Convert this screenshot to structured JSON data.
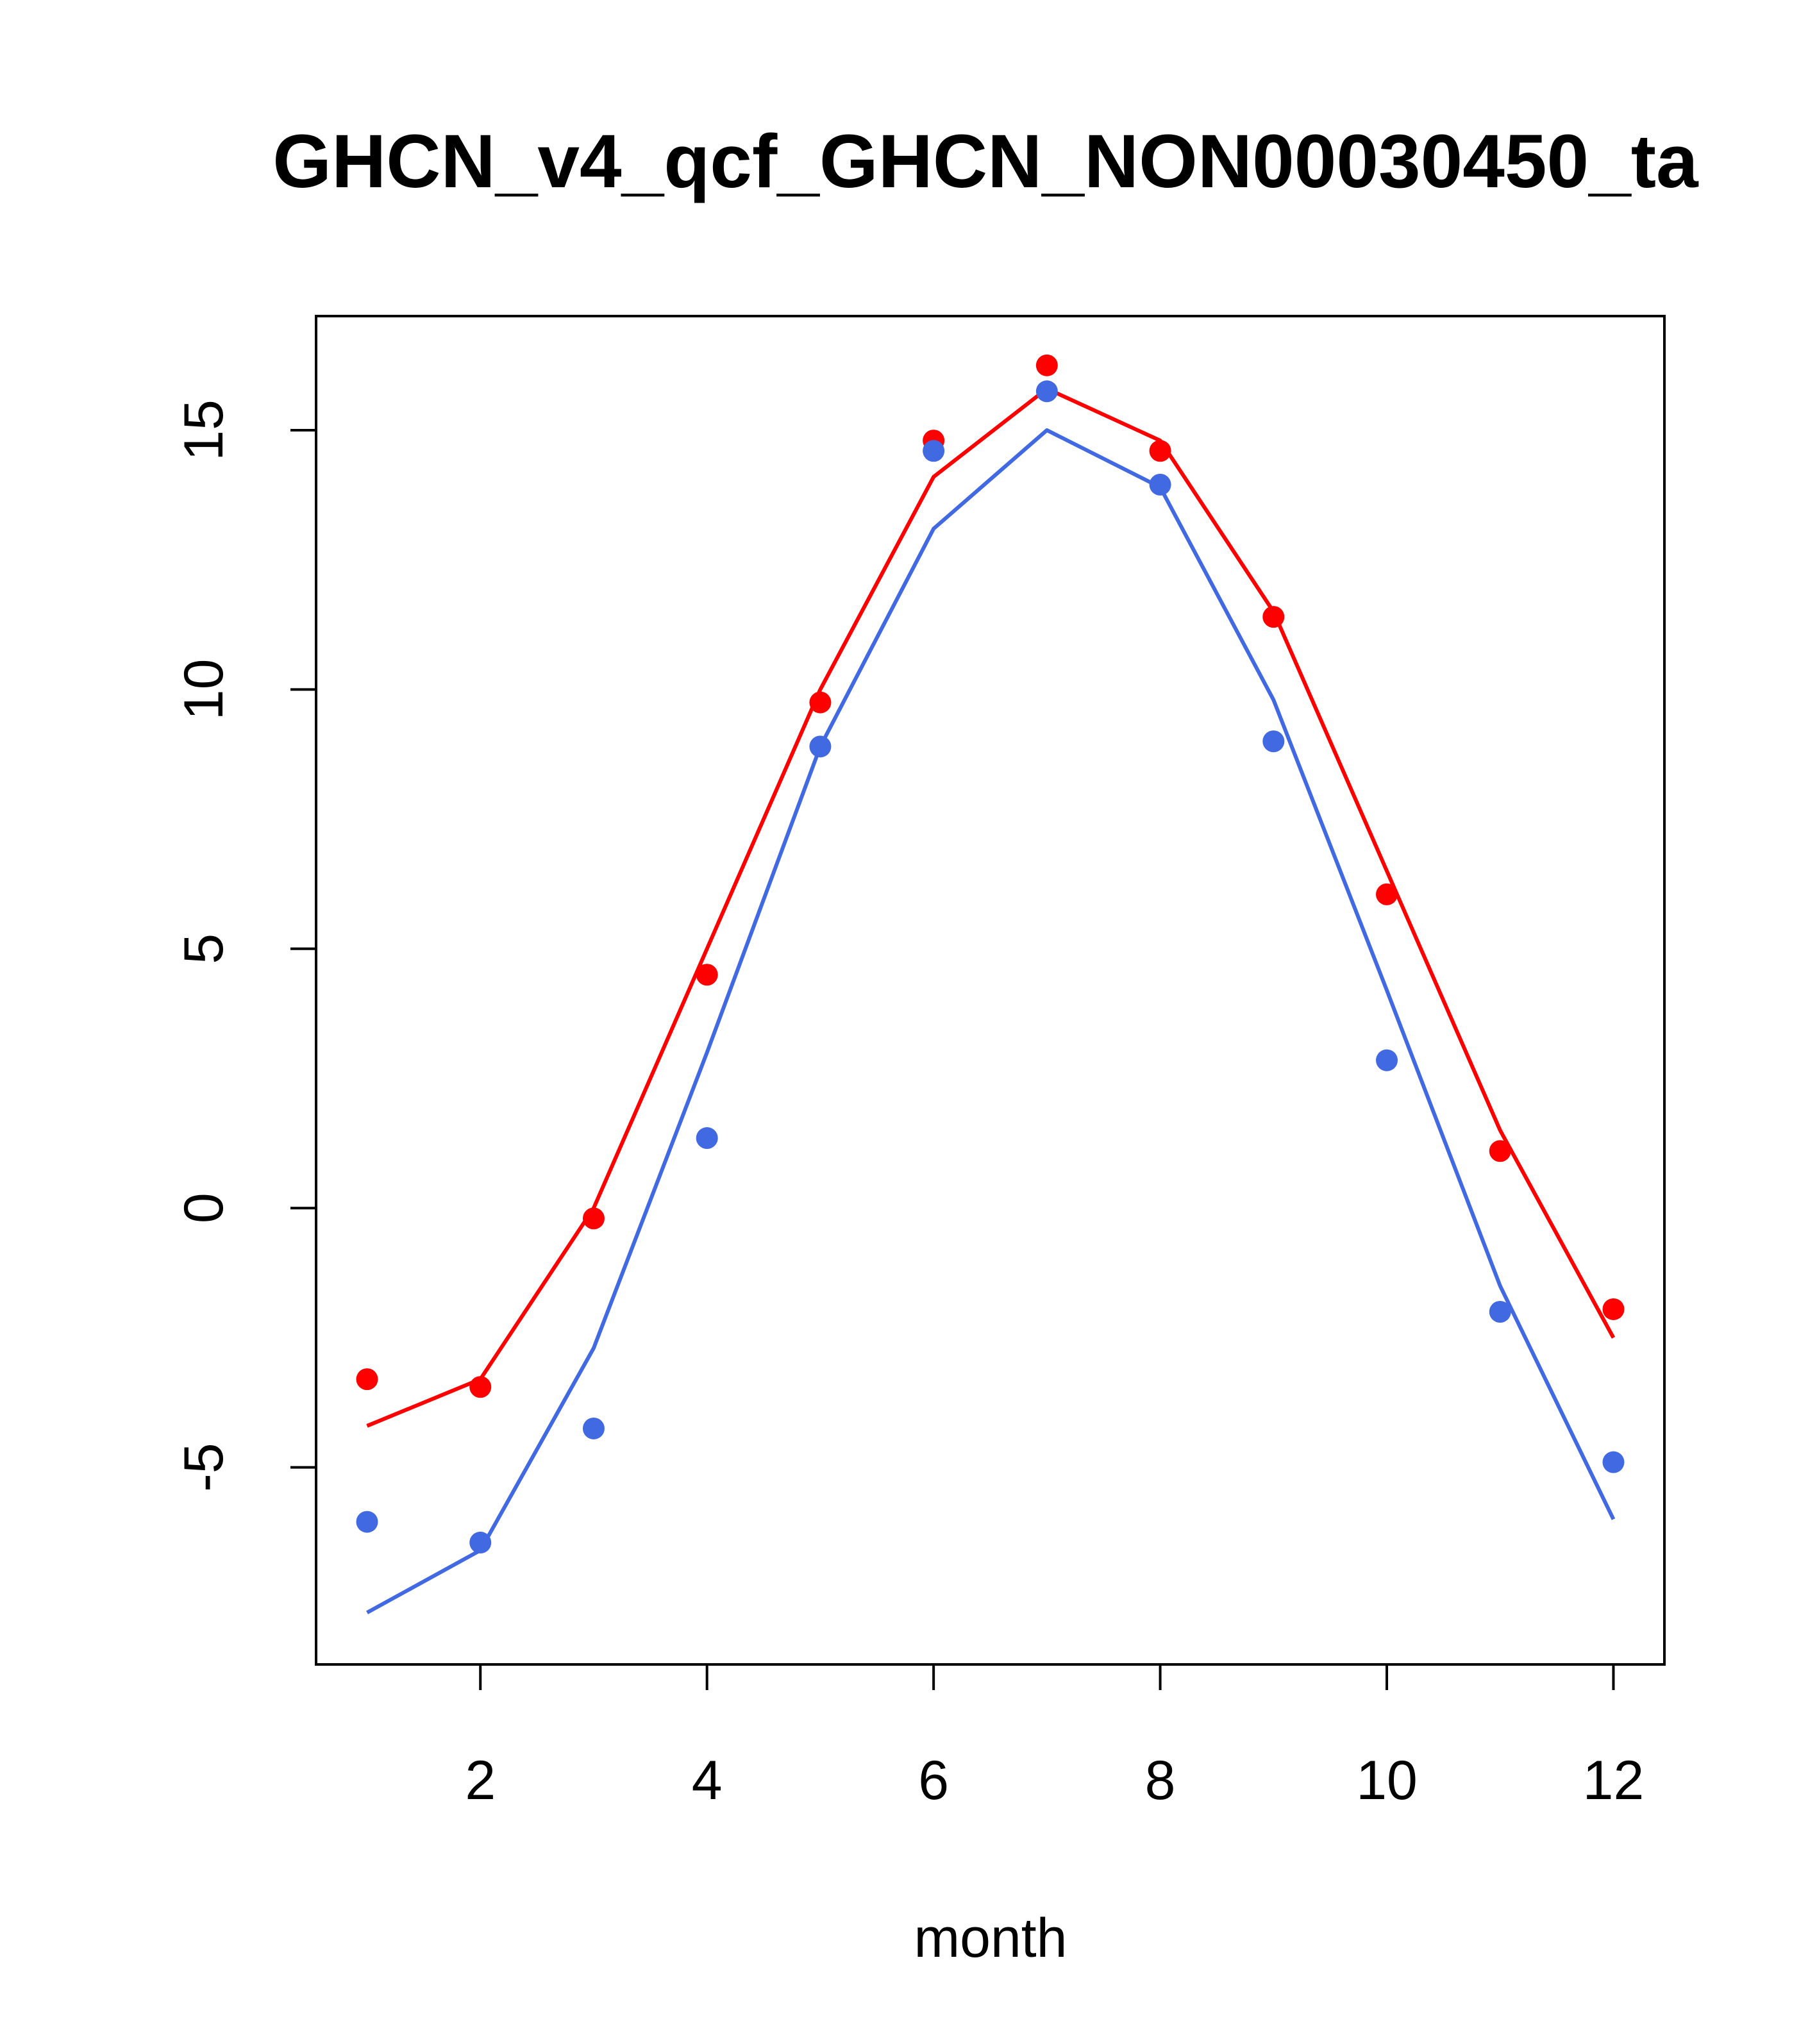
{
  "chart_data": {
    "type": "line",
    "title": "GHCN_v4_qcf_GHCN_NON00030450_ta",
    "xlabel": "month",
    "ylabel": "",
    "xlim": [
      0.55,
      12.45
    ],
    "ylim": [
      -8.8,
      17.2
    ],
    "x_ticks": [
      2,
      4,
      6,
      8,
      10,
      12
    ],
    "y_ticks": [
      -5,
      0,
      5,
      10,
      15
    ],
    "x_tick_labels": [
      "2",
      "4",
      "6",
      "8",
      "10",
      "12"
    ],
    "y_tick_labels": [
      "-5",
      "0",
      "5",
      "10",
      "15"
    ],
    "grid": false,
    "legend": "none",
    "series": [
      {
        "color": "#FF0000",
        "line": {
          "x": [
            1,
            2,
            3,
            4,
            5,
            6,
            7,
            8,
            9,
            10,
            11,
            12
          ],
          "y": [
            -4.2,
            -3.3,
            0.0,
            5.0,
            10.0,
            14.1,
            15.8,
            14.8,
            11.5,
            6.5,
            1.5,
            -2.5
          ]
        },
        "points": {
          "x": [
            1,
            2,
            3,
            4,
            5,
            6,
            7,
            8,
            9,
            10,
            11,
            12
          ],
          "y": [
            -3.3,
            -3.45,
            -0.2,
            4.5,
            9.75,
            14.8,
            16.25,
            14.6,
            11.4,
            6.05,
            1.1,
            -1.95
          ]
        }
      },
      {
        "color": "#4169E1",
        "line": {
          "x": [
            1,
            2,
            3,
            4,
            5,
            6,
            7,
            8,
            9,
            10,
            11,
            12
          ],
          "y": [
            -7.8,
            -6.6,
            -2.7,
            3.0,
            8.9,
            13.1,
            15.0,
            13.9,
            9.8,
            4.2,
            -1.5,
            -6.0
          ]
        },
        "points": {
          "x": [
            1,
            2,
            3,
            4,
            5,
            6,
            7,
            8,
            9,
            10,
            11,
            12
          ],
          "y": [
            -6.05,
            -6.45,
            -4.25,
            1.35,
            8.9,
            14.6,
            15.75,
            13.95,
            9.0,
            2.85,
            -2.0,
            -4.9
          ]
        }
      }
    ]
  }
}
